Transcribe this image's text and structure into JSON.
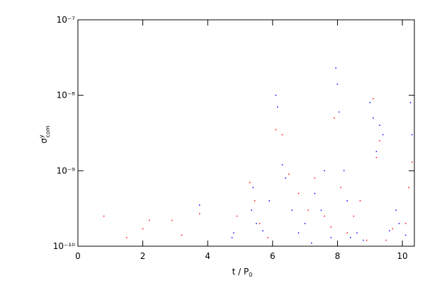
{
  "chart_data": {
    "type": "scatter",
    "x_label": {
      "text": "t / P",
      "sub": "0"
    },
    "y_label": {
      "symbol": "σ",
      "sup": "y",
      "sub": "com"
    },
    "xlim": [
      0,
      10.37
    ],
    "xticks": [
      0,
      2,
      4,
      6,
      8,
      10
    ],
    "ylim": [
      1e-10,
      1e-07
    ],
    "yticks": [
      {
        "value": 1e-10,
        "label": "10⁻¹⁰"
      },
      {
        "value": 1e-09,
        "label": "10⁻⁹"
      },
      {
        "value": 1e-08,
        "label": "10⁻⁸"
      },
      {
        "value": 1e-07,
        "label": "10⁻⁷"
      }
    ],
    "log_y": true,
    "series": [
      {
        "color": "#0000ff",
        "x": [
          3.75,
          4.75,
          4.8,
          5.35,
          5.4,
          5.5,
          5.7,
          5.9,
          6.1,
          6.15,
          6.3,
          6.4,
          6.6,
          6.8,
          7.0,
          7.2,
          7.3,
          7.5,
          7.6,
          7.8,
          7.95,
          8.0,
          8.05,
          8.2,
          8.3,
          8.4,
          8.6,
          8.8,
          9.0,
          9.1,
          9.2,
          9.3,
          9.4,
          9.6,
          9.8,
          9.9,
          10.1,
          10.25,
          10.3
        ],
        "values": [
          3.5e-10,
          1.3e-10,
          1.5e-10,
          3e-10,
          6e-10,
          2e-10,
          1.6e-10,
          4e-10,
          1e-08,
          7e-09,
          1.2e-09,
          8e-10,
          3e-10,
          1.5e-10,
          2e-10,
          1.1e-10,
          5e-10,
          3e-10,
          1e-09,
          1.3e-10,
          2.3e-08,
          1.4e-08,
          6e-09,
          1e-09,
          4e-10,
          1.3e-10,
          1.5e-10,
          1.2e-10,
          8e-09,
          5e-09,
          1.8e-09,
          4e-09,
          3e-09,
          1.6e-10,
          3e-10,
          2e-10,
          1.4e-10,
          8e-09,
          3e-09
        ]
      },
      {
        "color": "#ff0000",
        "x": [
          0.8,
          1.5,
          2.0,
          2.2,
          2.9,
          3.2,
          3.75,
          4.9,
          5.3,
          5.45,
          5.6,
          5.85,
          6.1,
          6.3,
          6.5,
          6.8,
          7.1,
          7.3,
          7.6,
          7.8,
          7.9,
          8.1,
          8.3,
          8.5,
          8.7,
          8.9,
          9.1,
          9.2,
          9.3,
          9.5,
          9.7,
          10.1,
          10.2,
          10.3
        ],
        "values": [
          2.5e-10,
          1.3e-10,
          1.7e-10,
          2.2e-10,
          2.2e-10,
          1.4e-10,
          2.7e-10,
          2.5e-10,
          7e-10,
          4e-10,
          2e-10,
          1.3e-10,
          3.5e-09,
          3e-09,
          9e-10,
          5e-10,
          3e-10,
          8e-10,
          2.5e-10,
          1.8e-10,
          5e-09,
          6e-10,
          1.5e-10,
          2.5e-10,
          4e-10,
          1.2e-10,
          9e-09,
          1.5e-09,
          2.5e-09,
          1.2e-10,
          1.7e-10,
          2e-10,
          6e-10,
          1.3e-09
        ]
      }
    ]
  }
}
